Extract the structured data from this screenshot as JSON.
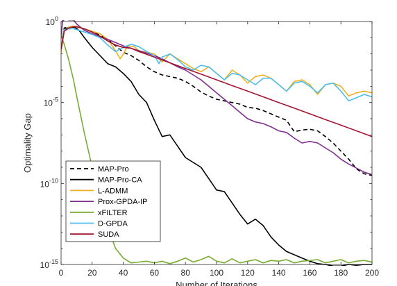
{
  "chart_data": {
    "type": "line",
    "title": "",
    "xlabel": "Number of Iterations",
    "ylabel": "Optimality Gap",
    "xlim": [
      0,
      200
    ],
    "ylim": [
      1e-15,
      1
    ],
    "yscale": "log",
    "x_ticks": [
      0,
      20,
      40,
      60,
      80,
      100,
      120,
      140,
      160,
      180,
      200
    ],
    "x_tick_labels": [
      "0",
      "20",
      "40",
      "60",
      "80",
      "100",
      "120",
      "140",
      "160",
      "180",
      "200"
    ],
    "y_ticks": [
      {
        "value": 1,
        "base": "10",
        "exp": "0"
      },
      {
        "value": 1e-05,
        "base": "10",
        "exp": "-5"
      },
      {
        "value": 1e-10,
        "base": "10",
        "exp": "-10"
      },
      {
        "value": 1e-15,
        "base": "10",
        "exp": "-15"
      }
    ],
    "grid": false,
    "legend_position": "bottom-left",
    "series": [
      {
        "name": "MAP-Pro",
        "color": "#000000",
        "dash": "dashed",
        "x": [
          0,
          2,
          5,
          8,
          10,
          15,
          20,
          25,
          30,
          35,
          40,
          45,
          50,
          55,
          60,
          65,
          70,
          75,
          80,
          85,
          90,
          95,
          100,
          105,
          110,
          115,
          120,
          125,
          130,
          135,
          140,
          145,
          150,
          155,
          160,
          165,
          170,
          175,
          180,
          185,
          190,
          195,
          200
        ],
        "y": [
          -1.8,
          -0.4,
          -0.35,
          -0.28,
          -0.3,
          -0.45,
          -0.62,
          -0.85,
          -1.1,
          -1.5,
          -1.9,
          -2.1,
          -2.4,
          -2.8,
          -3.1,
          -3.3,
          -3.4,
          -3.5,
          -3.7,
          -4.0,
          -4.35,
          -4.6,
          -4.8,
          -4.9,
          -5.0,
          -5.1,
          -5.3,
          -5.35,
          -5.5,
          -5.7,
          -5.9,
          -6.1,
          -6.8,
          -6.7,
          -6.65,
          -6.75,
          -7.1,
          -7.5,
          -8.0,
          -8.5,
          -9.1,
          -9.4,
          -9.5
        ]
      },
      {
        "name": "MAP-Pro-CA",
        "color": "#000000",
        "dash": "solid",
        "x": [
          0,
          2,
          5,
          8,
          10,
          12,
          15,
          20,
          25,
          30,
          35,
          40,
          45,
          50,
          55,
          60,
          65,
          70,
          75,
          80,
          85,
          90,
          95,
          100,
          105,
          110,
          115,
          120,
          125,
          130,
          135,
          140,
          145,
          150,
          155,
          160,
          165,
          170,
          175,
          180,
          185,
          190,
          195,
          200
        ],
        "y": [
          -1.8,
          -0.5,
          -0.35,
          -0.35,
          -0.42,
          -0.6,
          -1.0,
          -1.6,
          -2.1,
          -2.6,
          -2.8,
          -3.2,
          -3.7,
          -4.5,
          -5.0,
          -6.1,
          -7.1,
          -7.0,
          -7.7,
          -8.4,
          -8.7,
          -9.0,
          -9.7,
          -10.4,
          -10.5,
          -11.2,
          -11.9,
          -12.5,
          -12.2,
          -12.6,
          -13.3,
          -13.8,
          -14.2,
          -14.4,
          -14.6,
          -14.8,
          -14.95,
          -15.0,
          -15.1,
          -15.1,
          -15.0,
          -15.05,
          -15.0,
          -15.0
        ]
      },
      {
        "name": "L-ADMM",
        "color": "#EDB120",
        "dash": "solid",
        "x": [
          0,
          2,
          5,
          8,
          10,
          15,
          20,
          25,
          30,
          35,
          38,
          40,
          43,
          47,
          50,
          55,
          60,
          65,
          70,
          75,
          80,
          85,
          90,
          95,
          100,
          105,
          110,
          115,
          120,
          125,
          130,
          135,
          140,
          145,
          150,
          155,
          160,
          165,
          170,
          175,
          180,
          185,
          190,
          195,
          200
        ],
        "y": [
          -1.9,
          -0.6,
          -0.35,
          -0.28,
          -0.3,
          -0.45,
          -0.6,
          -0.75,
          -1.1,
          -1.8,
          -2.3,
          -2.0,
          -1.5,
          -1.55,
          -1.8,
          -1.9,
          -2.0,
          -2.5,
          -2.0,
          -2.3,
          -2.6,
          -2.9,
          -3.1,
          -2.8,
          -3.2,
          -3.6,
          -3.0,
          -3.3,
          -3.8,
          -3.4,
          -3.3,
          -3.5,
          -3.9,
          -4.3,
          -3.7,
          -3.6,
          -3.9,
          -4.5,
          -3.9,
          -3.8,
          -4.0,
          -4.6,
          -4.4,
          -4.3,
          -4.4
        ]
      },
      {
        "name": "Prox-GPDA-IP",
        "color": "#7E2F8E",
        "dash": "solid",
        "x": [
          0,
          1,
          3,
          5,
          8,
          10,
          15,
          20,
          25,
          30,
          35,
          40,
          45,
          50,
          55,
          60,
          65,
          70,
          75,
          80,
          85,
          90,
          95,
          100,
          105,
          110,
          115,
          120,
          125,
          130,
          135,
          140,
          145,
          150,
          155,
          160,
          165,
          170,
          175,
          180,
          185,
          190,
          195,
          200
        ],
        "y": [
          -1.0,
          0.05,
          0.15,
          0.1,
          0.1,
          -0.15,
          -0.55,
          -0.75,
          -0.95,
          -1.1,
          -1.3,
          -1.5,
          -1.65,
          -1.8,
          -1.95,
          -2.1,
          -2.3,
          -2.55,
          -2.8,
          -3.0,
          -3.3,
          -3.6,
          -4.0,
          -4.4,
          -4.8,
          -5.2,
          -5.6,
          -6.0,
          -6.2,
          -6.3,
          -6.5,
          -6.75,
          -6.85,
          -7.2,
          -7.5,
          -7.4,
          -7.5,
          -7.8,
          -8.1,
          -8.5,
          -8.8,
          -9.05,
          -9.3,
          -9.45
        ]
      },
      {
        "name": "xFILTER",
        "color": "#77AC30",
        "dash": "solid",
        "x": [
          0,
          2,
          5,
          8,
          10,
          15,
          20,
          25,
          30,
          35,
          40,
          45,
          50,
          55,
          60,
          65,
          70,
          75,
          80,
          85,
          90,
          95,
          100,
          105,
          110,
          115,
          120,
          125,
          130,
          135,
          140,
          145,
          150,
          155,
          160,
          165,
          170,
          175,
          180,
          185,
          190,
          195,
          200
        ],
        "y": [
          -0.8,
          -1.4,
          -2.4,
          -3.6,
          -4.6,
          -6.9,
          -9.0,
          -11.0,
          -12.7,
          -14.0,
          -14.6,
          -14.9,
          -14.85,
          -14.8,
          -14.9,
          -14.8,
          -14.95,
          -14.8,
          -14.6,
          -14.85,
          -14.7,
          -14.5,
          -14.8,
          -14.9,
          -14.65,
          -14.9,
          -14.8,
          -14.7,
          -14.9,
          -14.75,
          -14.8,
          -14.7,
          -14.9,
          -14.8,
          -14.75,
          -14.7,
          -14.9,
          -14.8,
          -14.7,
          -14.9,
          -14.8,
          -14.75,
          -14.85
        ]
      },
      {
        "name": "D-GPDA",
        "color": "#4DBEEE",
        "dash": "solid",
        "x": [
          0,
          2,
          5,
          8,
          10,
          15,
          20,
          25,
          30,
          35,
          40,
          45,
          50,
          55,
          60,
          63,
          65,
          70,
          75,
          80,
          85,
          90,
          95,
          100,
          105,
          110,
          115,
          120,
          125,
          130,
          135,
          140,
          145,
          150,
          155,
          160,
          165,
          170,
          175,
          180,
          185,
          190,
          195,
          200
        ],
        "y": [
          -1.7,
          -0.5,
          -0.45,
          -0.45,
          -0.5,
          -0.65,
          -0.8,
          -1.0,
          -1.45,
          -1.85,
          -1.6,
          -1.4,
          -1.55,
          -1.85,
          -2.1,
          -2.6,
          -2.2,
          -2.0,
          -2.35,
          -2.8,
          -3.0,
          -2.7,
          -2.8,
          -3.2,
          -3.6,
          -3.2,
          -3.3,
          -3.6,
          -3.9,
          -3.5,
          -3.5,
          -3.9,
          -4.3,
          -3.8,
          -3.7,
          -4.0,
          -4.4,
          -3.9,
          -3.8,
          -4.3,
          -4.9,
          -4.7,
          -4.5,
          -4.65
        ]
      },
      {
        "name": "SUDA",
        "color": "#A2142F",
        "dash": "solid",
        "x": [
          0,
          2,
          5,
          8,
          10,
          15,
          20,
          25,
          30,
          35,
          40,
          45,
          50,
          60,
          70,
          80,
          90,
          100,
          110,
          120,
          130,
          140,
          150,
          160,
          170,
          180,
          190,
          200
        ],
        "y": [
          -1.7,
          -0.6,
          -0.4,
          -0.32,
          -0.33,
          -0.45,
          -0.65,
          -0.9,
          -1.2,
          -1.45,
          -1.6,
          -1.65,
          -1.85,
          -2.2,
          -2.55,
          -2.9,
          -3.25,
          -3.6,
          -3.95,
          -4.3,
          -4.65,
          -5.0,
          -5.35,
          -5.7,
          -6.05,
          -6.4,
          -6.75,
          -7.1
        ]
      }
    ]
  }
}
